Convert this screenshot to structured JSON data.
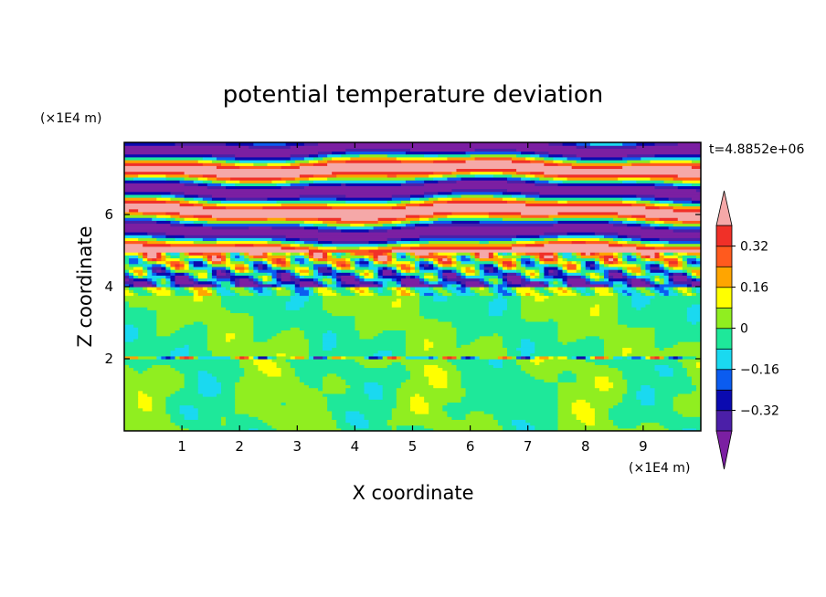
{
  "chart_data": {
    "type": "heatmap",
    "title": "potential temperature deviation",
    "xlabel": "X coordinate",
    "ylabel": "Z coordinate",
    "x_unit": "(×1E4 m)",
    "y_unit": "(×1E4 m)",
    "time_label": "t=4.8852e+06",
    "xlim": [
      0,
      10
    ],
    "ylim": [
      0,
      8
    ],
    "x_ticks": [
      "1",
      "2",
      "3",
      "4",
      "5",
      "6",
      "7",
      "8",
      "9"
    ],
    "y_ticks": [
      "2",
      "4",
      "6"
    ],
    "colorbar": {
      "levels": [
        -0.4,
        -0.32,
        -0.24,
        -0.16,
        -0.08,
        0,
        0.08,
        0.16,
        0.24,
        0.32,
        0.4
      ],
      "labels": [
        "-0.32",
        "-0.16",
        "0",
        "0.16",
        "0.32"
      ],
      "colors": [
        "#7b1fa2",
        "#4b1fa8",
        "#0a0ab0",
        "#0b5cf0",
        "#1ad9f0",
        "#1ee89a",
        "#90ee20",
        "#ffff00",
        "#ffa500",
        "#ff5a1e",
        "#f03028",
        "#f5a8a8"
      ],
      "extend": "both"
    },
    "regions": {
      "lower_zone_z": [
        0,
        2
      ],
      "lower_zone_values": [
        -0.04,
        0.04
      ],
      "middle_zone_z": [
        2,
        4
      ],
      "middle_zone_values": [
        -0.04,
        0.04
      ],
      "transition_zone_z": [
        4,
        5
      ],
      "transition_zone_values": [
        -0.4,
        0.4
      ],
      "upper_zone_z": [
        5,
        8
      ],
      "upper_zone_values": [
        -0.45,
        0.45
      ]
    }
  }
}
